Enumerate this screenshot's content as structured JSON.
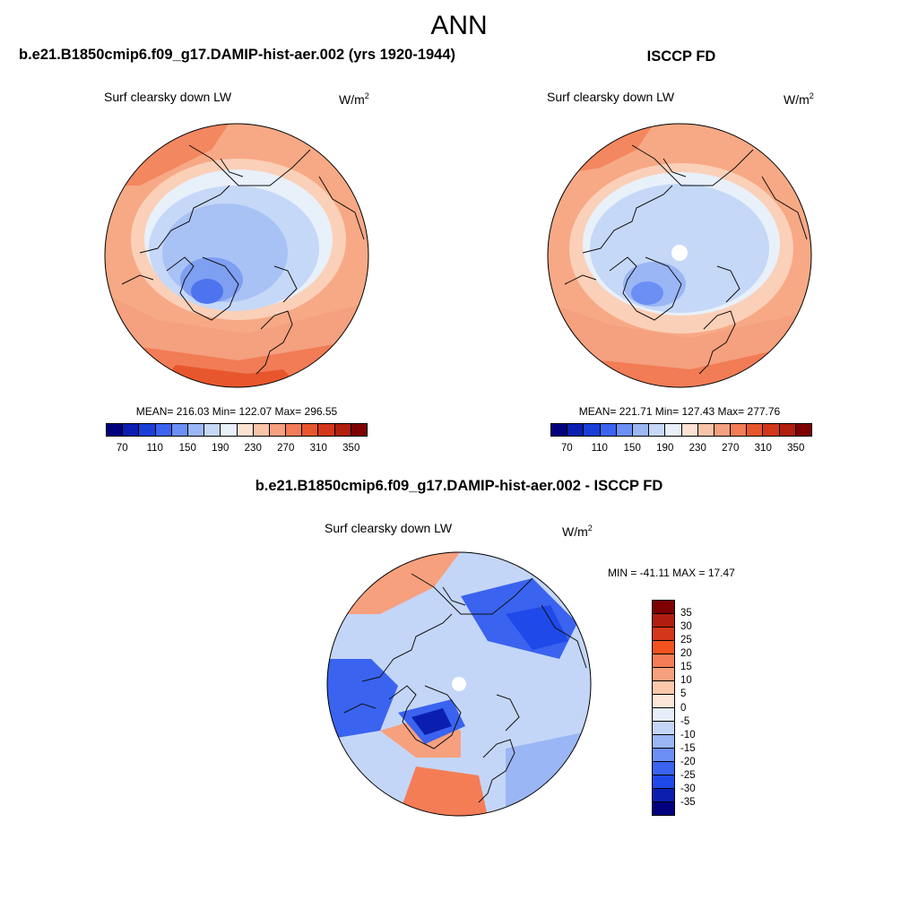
{
  "page": {
    "main_title": "ANN",
    "case_title": "b.e21.B1850cmip6.f09_g17.DAMIP-hist-aer.002 (yrs 1920-1944)",
    "obs_title": "ISCCP FD",
    "diff_title": "b.e21.B1850cmip6.f09_g17.DAMIP-hist-aer.002 - ISCCP FD"
  },
  "panels": {
    "model": {
      "variable": "Surf clearsky down LW",
      "units_base": "W/m",
      "units_exp": "2",
      "stats": "MEAN= 216.03  Min= 122.07  Max= 296.55"
    },
    "obs": {
      "variable": "Surf clearsky down LW",
      "units_base": "W/m",
      "units_exp": "2",
      "stats": "MEAN= 221.71  Min= 127.43  Max= 277.76"
    },
    "diff": {
      "variable": "Surf clearsky down LW",
      "units_base": "W/m",
      "units_exp": "2",
      "stats": "MIN = -41.11 MAX =  17.47"
    }
  },
  "colorbar_abs": {
    "colors": [
      "#00007f",
      "#0a1fb0",
      "#1a3fd8",
      "#3a63f0",
      "#6b8ff4",
      "#9ab6f5",
      "#c6d8f7",
      "#e8f0fa",
      "#fde2d2",
      "#f9c3a8",
      "#f5a07e",
      "#f17c56",
      "#e8562d",
      "#d3361a",
      "#b11d0e",
      "#7f0000"
    ],
    "tick_labels": [
      "70",
      "110",
      "150",
      "190",
      "230",
      "270",
      "310",
      "350"
    ]
  },
  "colorbar_diff": {
    "colors": [
      "#7f0000",
      "#b11d0e",
      "#d3361a",
      "#f2521f",
      "#f57d56",
      "#f7a07e",
      "#fbc8ac",
      "#fde6d8",
      "#e6eefa",
      "#c4d6f7",
      "#9ab6f5",
      "#6b8ff4",
      "#3a63f0",
      "#1f49e8",
      "#0a1fb0",
      "#00007f"
    ],
    "tick_labels": [
      "35",
      "30",
      "25",
      "20",
      "15",
      "10",
      "5",
      "0",
      "-5",
      "-10",
      "-15",
      "-20",
      "-25",
      "-30",
      "-35"
    ]
  },
  "colors": {
    "map_outline": "#000000",
    "coast": "#111111"
  }
}
